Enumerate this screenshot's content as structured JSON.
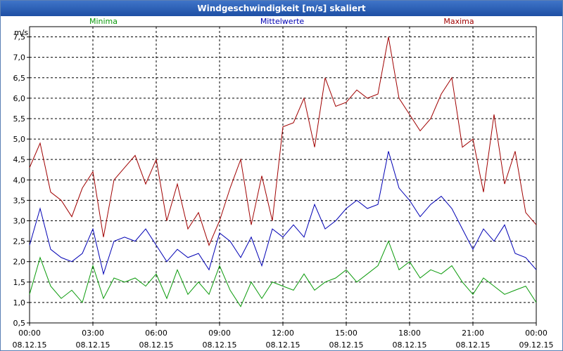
{
  "window": {
    "title": "Windgeschwindigkeit [m/s] skaliert"
  },
  "chart_data": {
    "type": "line",
    "title": "Windgeschwindigkeit [m/s] skaliert",
    "ylabel": "m/s",
    "xlabel": "",
    "ylim": [
      0.5,
      7.75
    ],
    "xlim": [
      0,
      24
    ],
    "grid": true,
    "yticks": [
      "0,5",
      "1,0",
      "1,5",
      "2,0",
      "2,5",
      "3,0",
      "3,5",
      "4,0",
      "4,5",
      "5,0",
      "5,5",
      "6,0",
      "6,5",
      "7,0",
      "7,5"
    ],
    "xticks": [
      {
        "time": "00:00",
        "date": "08.12.15"
      },
      {
        "time": "03:00",
        "date": "08.12.15"
      },
      {
        "time": "06:00",
        "date": "08.12.15"
      },
      {
        "time": "09:00",
        "date": "08.12.15"
      },
      {
        "time": "12:00",
        "date": "08.12.15"
      },
      {
        "time": "15:00",
        "date": "08.12.15"
      },
      {
        "time": "18:00",
        "date": "08.12.15"
      },
      {
        "time": "21:00",
        "date": "08.12.15"
      },
      {
        "time": "00:00",
        "date": "09.12.15"
      }
    ],
    "x": [
      0,
      0.5,
      1,
      1.5,
      2,
      2.5,
      3,
      3.5,
      4,
      4.5,
      5,
      5.5,
      6,
      6.5,
      7,
      7.5,
      8,
      8.5,
      9,
      9.5,
      10,
      10.5,
      11,
      11.5,
      12,
      12.5,
      13,
      13.5,
      14,
      14.5,
      15,
      15.5,
      16,
      16.5,
      17,
      17.5,
      18,
      18.5,
      19,
      19.5,
      20,
      20.5,
      21,
      21.5,
      22,
      22.5,
      23,
      23.5,
      24
    ],
    "series": [
      {
        "name": "Minima",
        "color": "#0a9a0a",
        "values": [
          1.2,
          2.1,
          1.4,
          1.1,
          1.3,
          1.0,
          1.9,
          1.1,
          1.6,
          1.5,
          1.6,
          1.4,
          1.7,
          1.1,
          1.8,
          1.2,
          1.5,
          1.2,
          1.9,
          1.3,
          0.9,
          1.5,
          1.1,
          1.5,
          1.4,
          1.3,
          1.7,
          1.3,
          1.5,
          1.6,
          1.8,
          1.5,
          1.7,
          1.9,
          2.5,
          1.8,
          2.0,
          1.6,
          1.8,
          1.7,
          1.9,
          1.5,
          1.2,
          1.6,
          1.4,
          1.2,
          1.3,
          1.4,
          1.0
        ]
      },
      {
        "name": "Mittelwerte",
        "color": "#0000b4",
        "values": [
          2.4,
          3.3,
          2.3,
          2.1,
          2.0,
          2.2,
          2.8,
          1.7,
          2.5,
          2.6,
          2.5,
          2.8,
          2.4,
          2.0,
          2.3,
          2.1,
          2.2,
          1.8,
          2.7,
          2.5,
          2.1,
          2.6,
          1.9,
          2.8,
          2.6,
          2.9,
          2.6,
          3.4,
          2.8,
          3.0,
          3.3,
          3.5,
          3.3,
          3.4,
          4.7,
          3.8,
          3.5,
          3.1,
          3.4,
          3.6,
          3.3,
          2.8,
          2.3,
          2.8,
          2.5,
          2.9,
          2.2,
          2.1,
          1.8
        ]
      },
      {
        "name": "Maxima",
        "color": "#a00000",
        "values": [
          4.3,
          4.9,
          3.7,
          3.5,
          3.1,
          3.8,
          4.2,
          2.6,
          4.0,
          4.3,
          4.6,
          3.9,
          4.5,
          3.0,
          3.9,
          2.8,
          3.2,
          2.4,
          3.0,
          3.8,
          4.5,
          2.9,
          4.1,
          3.0,
          5.3,
          5.4,
          6.0,
          4.8,
          6.5,
          5.8,
          5.9,
          6.2,
          6.0,
          6.1,
          7.5,
          6.0,
          5.6,
          5.2,
          5.5,
          6.1,
          6.5,
          4.8,
          5.0,
          3.7,
          5.6,
          3.9,
          4.7,
          3.2,
          2.9
        ]
      }
    ]
  }
}
